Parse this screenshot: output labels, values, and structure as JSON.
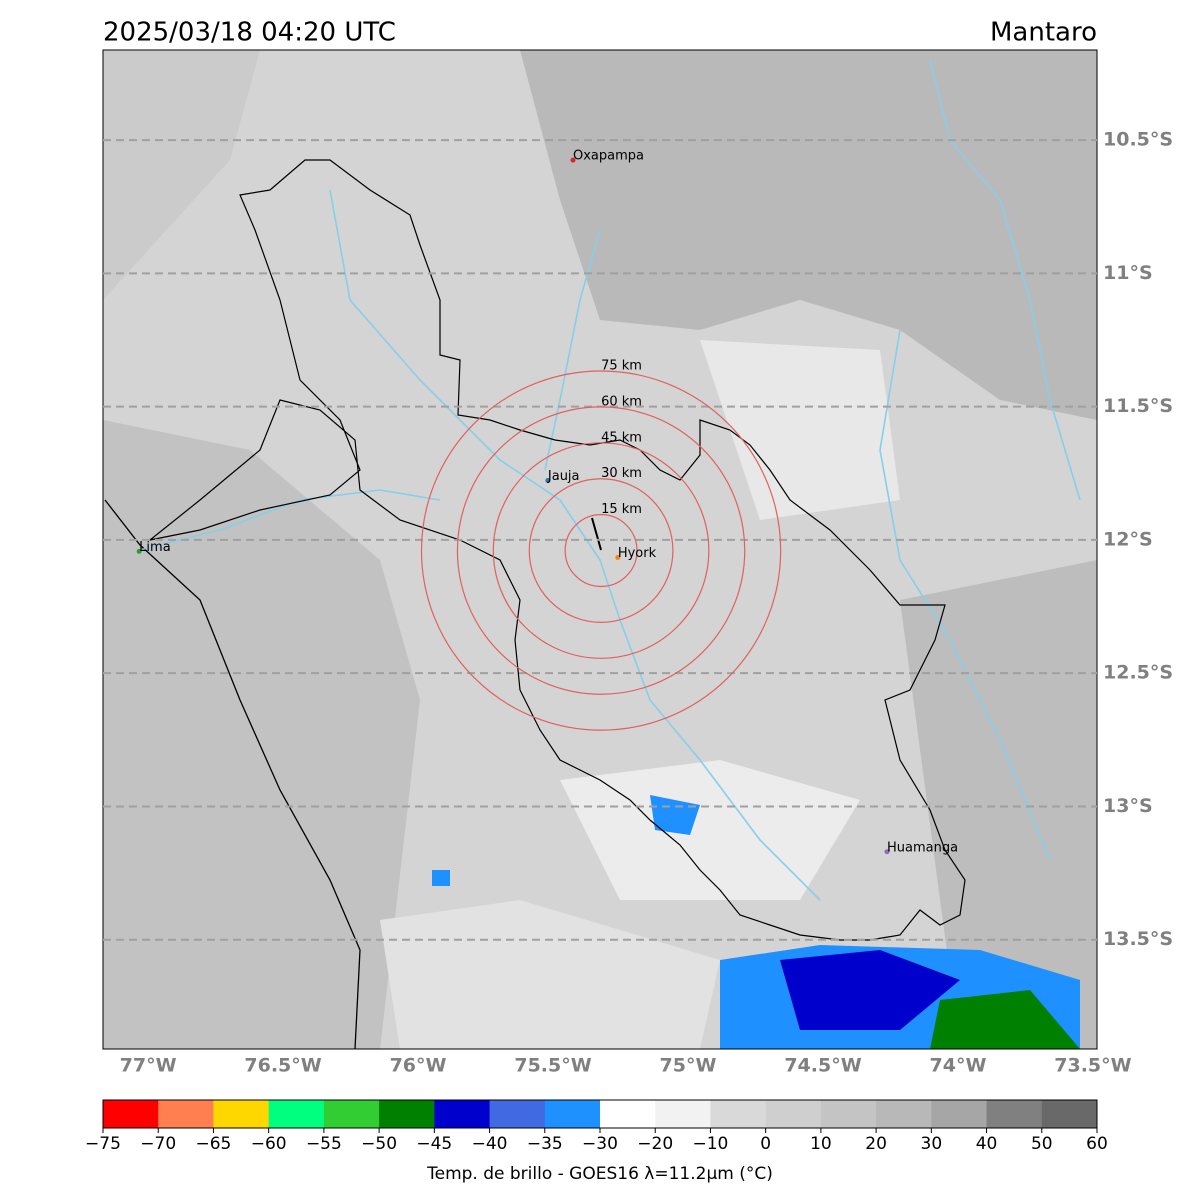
{
  "header": {
    "title": "2025/03/18 04:20 UTC",
    "region": "Mantaro"
  },
  "map": {
    "xlim": [
      -77.167,
      -73.485
    ],
    "ylim": [
      -13.91,
      -10.162
    ],
    "yticks": [
      {
        "value": -10.5,
        "label": "10.5°S"
      },
      {
        "value": -11,
        "label": "11°S"
      },
      {
        "value": -11.5,
        "label": "11.5°S"
      },
      {
        "value": -12,
        "label": "12°S"
      },
      {
        "value": -12.5,
        "label": "12.5°S"
      },
      {
        "value": -13,
        "label": "13°S"
      },
      {
        "value": -13.5,
        "label": "13.5°S"
      }
    ],
    "xticks": [
      {
        "value": -77,
        "label": "77°W"
      },
      {
        "value": -76.5,
        "label": "76.5°W"
      },
      {
        "value": -76,
        "label": "76°W"
      },
      {
        "value": -75.5,
        "label": "75.5°W"
      },
      {
        "value": -75,
        "label": "75°W"
      },
      {
        "value": -74.5,
        "label": "74.5°W"
      },
      {
        "value": -74,
        "label": "74°W"
      },
      {
        "value": -73.5,
        "label": "73.5°W"
      }
    ],
    "cities": [
      {
        "name": "Oxapampa",
        "lon": -75.426,
        "lat": -10.575,
        "color": "#d62728"
      },
      {
        "name": "Jauja",
        "lon": -75.519,
        "lat": -11.777,
        "color": "#1f77b4"
      },
      {
        "name": "Lima",
        "lon": -77.033,
        "lat": -12.043,
        "color": "#2ca02c"
      },
      {
        "name": "Hyork",
        "lon": -75.26,
        "lat": -12.066,
        "color": "#ff7f0e"
      },
      {
        "name": "Huamanga",
        "lon": -74.263,
        "lat": -13.17,
        "color": "#9467bd"
      }
    ],
    "rings": {
      "lon": -75.322,
      "lat": -12.04,
      "color": "#e06060",
      "radii": [
        {
          "value": 15,
          "label": "15 km"
        },
        {
          "value": 30,
          "label": "30 km"
        },
        {
          "value": 45,
          "label": "45 km"
        },
        {
          "value": 60,
          "label": "60 km"
        },
        {
          "value": 75,
          "label": "75 km"
        }
      ]
    }
  },
  "colorbar": {
    "label": "Temp. de brillo - GOES16 λ=11.2μm (°C)",
    "bounds": [
      {
        "value": -75,
        "label": "−75"
      },
      {
        "value": -70,
        "label": "−70"
      },
      {
        "value": -65,
        "label": "−65"
      },
      {
        "value": -60,
        "label": "−60"
      },
      {
        "value": -55,
        "label": "−55"
      },
      {
        "value": -50,
        "label": "−50"
      },
      {
        "value": -45,
        "label": "−45"
      },
      {
        "value": -40,
        "label": "−40"
      },
      {
        "value": -35,
        "label": "−35"
      },
      {
        "value": -30,
        "label": "−30"
      },
      {
        "value": -20,
        "label": "−20"
      },
      {
        "value": -10,
        "label": "−10"
      },
      0,
      10,
      20,
      30,
      40,
      50,
      60
    ],
    "colors": [
      "#ff0000",
      "#ff7f50",
      "#ffd700",
      "#00ff7f",
      "#32cd32",
      "#008000",
      "#0000cd",
      "#4169e1",
      "#1e90ff",
      "#ffffff",
      "#f2f2f2",
      "#d9d9d9",
      "#cfcfcf",
      "#c4c4c4",
      "#b8b8b8",
      "#a6a6a6",
      "#808080",
      "#696969",
      "#000000"
    ]
  }
}
